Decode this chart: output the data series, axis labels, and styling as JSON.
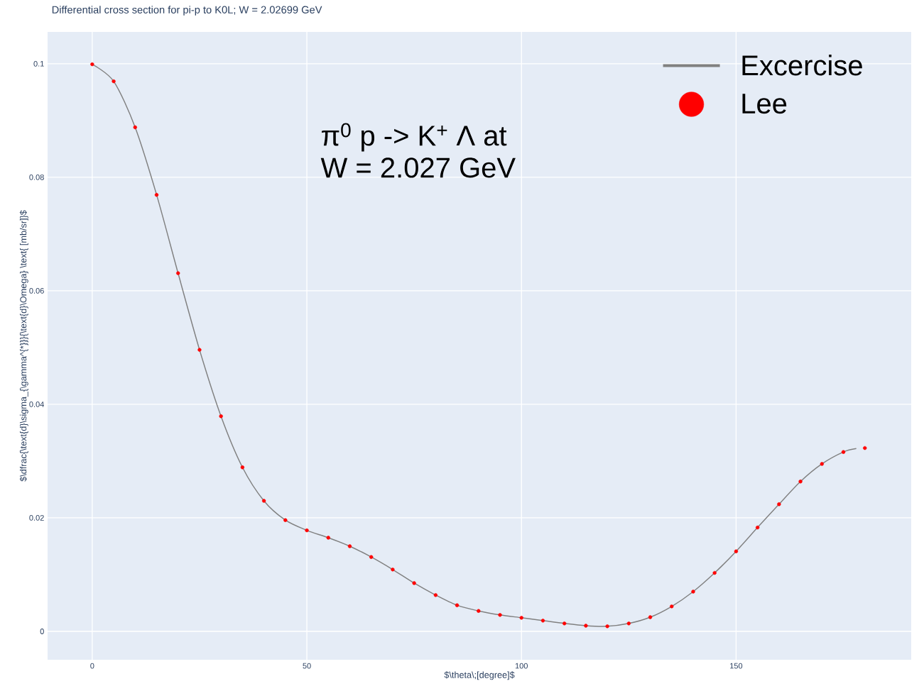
{
  "chart_data": {
    "type": "line",
    "title": "Differential cross section for pi-p to K0L; W = 2.02699 GeV",
    "xlabel": "$\\theta\\;[degree]$",
    "ylabel": "$\\dfrac{\\text{d}\\sigma_{\\gamma^{*}}}{\\text{d}\\Omega} \\text{ [mb/sr]}$",
    "annotations": [
      "π$^{0}$ p -> K$^{+}$ Λ at",
      "W = 2.027 GeV"
    ],
    "x": [
      0,
      5,
      10,
      15,
      20,
      25,
      30,
      35,
      40,
      45,
      50,
      55,
      60,
      65,
      70,
      75,
      80,
      85,
      90,
      95,
      100,
      105,
      110,
      115,
      120,
      125,
      130,
      135,
      140,
      145,
      150,
      155,
      160,
      165,
      170,
      175,
      180
    ],
    "series": [
      {
        "name": "Excercise",
        "color": "#808080",
        "marker": "none",
        "line_style": "solid",
        "x": [
          0,
          5,
          10,
          15,
          20,
          25,
          30,
          35,
          40,
          45,
          50,
          55,
          60,
          65,
          70,
          75,
          80,
          85,
          90,
          95,
          100,
          105,
          110,
          115,
          120,
          125,
          130,
          135,
          140,
          145,
          150,
          155,
          160,
          165,
          170,
          175,
          178
        ],
        "values": [
          0.0999,
          0.0969,
          0.0888,
          0.0769,
          0.0631,
          0.0496,
          0.0379,
          0.0289,
          0.023,
          0.0196,
          0.0178,
          0.0165,
          0.015,
          0.0131,
          0.0109,
          0.0085,
          0.0064,
          0.0046,
          0.0036,
          0.0029,
          0.0024,
          0.0019,
          0.0014,
          0.001,
          0.0009,
          0.0014,
          0.0025,
          0.0044,
          0.007,
          0.0103,
          0.0141,
          0.0183,
          0.0224,
          0.0264,
          0.0295,
          0.0316,
          0.0322
        ]
      },
      {
        "name": "Lee",
        "type": "scatter",
        "color": "#ff0000",
        "marker": "circle",
        "values": [
          0.0999,
          0.0969,
          0.0888,
          0.0769,
          0.0631,
          0.0496,
          0.0379,
          0.0289,
          0.023,
          0.0196,
          0.0178,
          0.0165,
          0.015,
          0.0131,
          0.0109,
          0.0085,
          0.0064,
          0.0046,
          0.0036,
          0.0029,
          0.0024,
          0.0019,
          0.0014,
          0.001,
          0.0009,
          0.0014,
          0.0025,
          0.0044,
          0.007,
          0.0103,
          0.0141,
          0.0183,
          0.0224,
          0.0264,
          0.0295,
          0.0316,
          0.0323
        ]
      }
    ],
    "xlim": [
      -10.4,
      190.8
    ],
    "ylim": [
      -0.005,
      0.1056
    ],
    "xticks": [
      0,
      50,
      100,
      150
    ],
    "yticks": [
      0,
      0.02,
      0.04,
      0.06,
      0.08,
      0.1
    ],
    "grid": true,
    "legend": "top right"
  }
}
